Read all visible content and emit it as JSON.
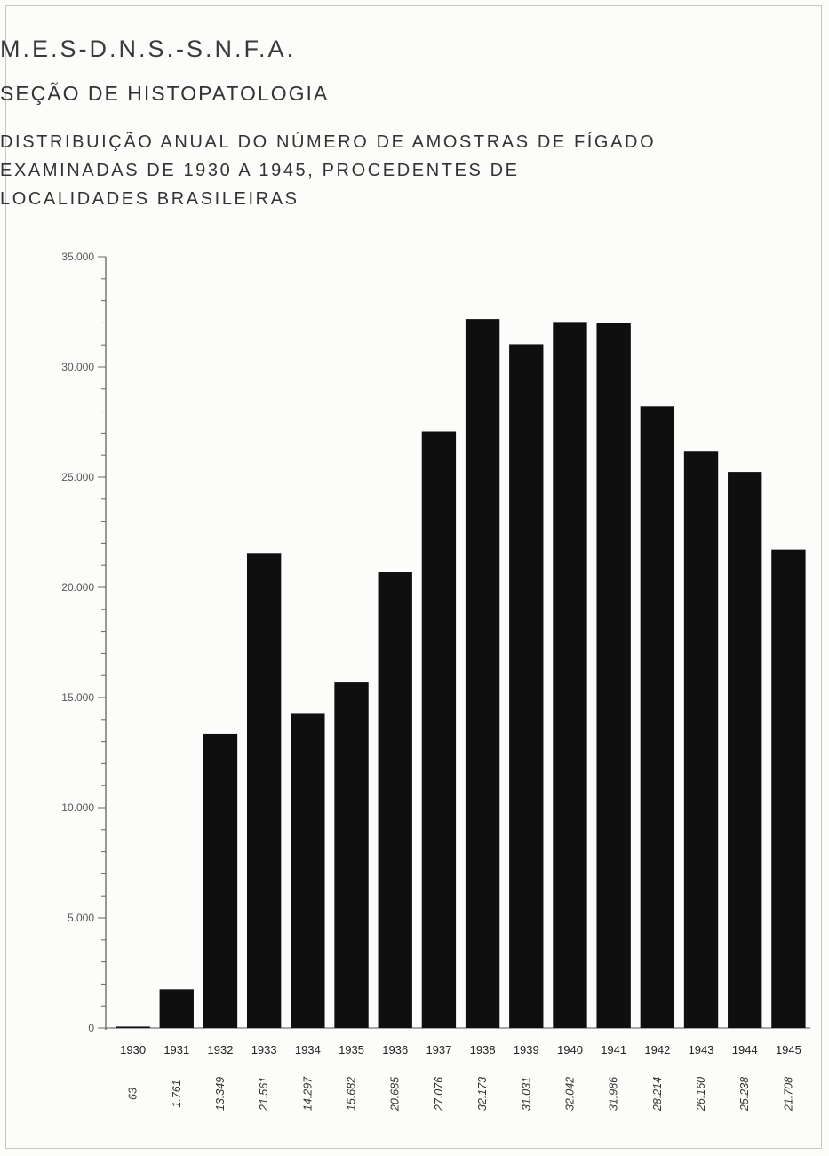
{
  "header": {
    "line1": "M.E.S-D.N.S.-S.N.F.A.",
    "line2": "SEÇÃO DE HISTOPATOLOGIA",
    "line3a": "DISTRIBUIÇÃO ANUAL DO NÚMERO DE AMOSTRAS DE FÍGADO",
    "line3b": "EXAMINADAS DE 1930 A 1945, PROCEDENTES DE",
    "line3c": "LOCALIDADES BRASILEIRAS"
  },
  "chart_data": {
    "type": "bar",
    "title": "DISTRIBUIÇÃO ANUAL DO NÚMERO DE AMOSTRAS DE FÍGADO EXAMINADAS DE 1930 A 1945, PROCEDENTES DE LOCALIDADES BRASILEIRAS",
    "categories": [
      "1930",
      "1931",
      "1932",
      "1933",
      "1934",
      "1935",
      "1936",
      "1937",
      "1938",
      "1939",
      "1940",
      "1941",
      "1942",
      "1943",
      "1944",
      "1945"
    ],
    "values": [
      63,
      1761,
      13349,
      21561,
      14297,
      15682,
      20685,
      27076,
      32173,
      31031,
      32042,
      31986,
      28214,
      26160,
      25238,
      21708
    ],
    "value_labels": [
      "63",
      "1.761",
      "13.349",
      "21.561",
      "14.297",
      "15.682",
      "20.685",
      "27.076",
      "32.173",
      "31.031",
      "32.042",
      "31.986",
      "28.214",
      "26.160",
      "25.238",
      "21.708"
    ],
    "ylim": [
      0,
      35000
    ],
    "yticks": [
      0,
      5000,
      10000,
      15000,
      20000,
      25000,
      30000,
      35000
    ],
    "ytick_labels": [
      "0",
      "5.000",
      "10.000",
      "15.000",
      "20.000",
      "25.000",
      "30.000",
      "35.000"
    ],
    "xlabel": "",
    "ylabel": "",
    "grid": false,
    "bar_color": "#0f0f0f"
  }
}
